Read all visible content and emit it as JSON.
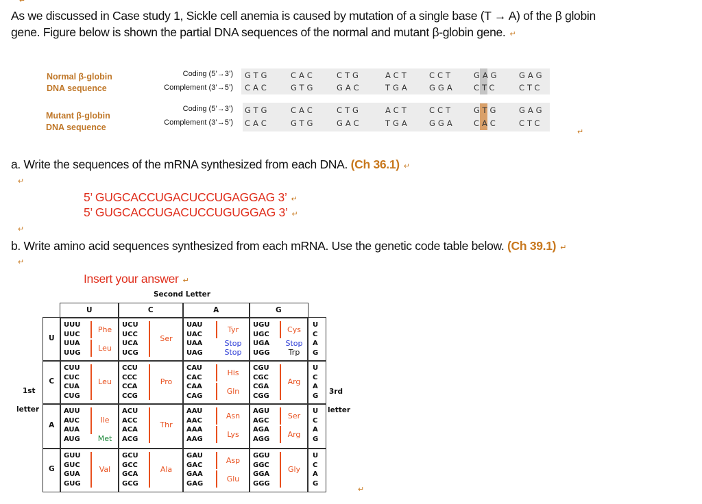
{
  "para_mark": "↵",
  "intro": {
    "line1": "As we discussed in Case study 1, Sickle cell anemia is caused by mutation of a single base (T → A) of the β globin",
    "line2": "gene. Figure below is shown the partial DNA sequences of the normal and mutant β-globin gene."
  },
  "dna_figure": {
    "normal_label": [
      "Normal  β-globin",
      "DNA sequence"
    ],
    "mutant_label": [
      "Mutant  β-globin",
      "DNA sequence"
    ],
    "coding_label": "Coding (5’→3’)",
    "complement_label": "Complement (3’→5’)",
    "normal_coding": [
      "GTG",
      "CAC",
      "CTG",
      "ACT",
      "CCT",
      "GAG",
      "GAG"
    ],
    "normal_complement": [
      "CAC",
      "GTG",
      "GAC",
      "TGA",
      "GGA",
      "CTC",
      "CTC"
    ],
    "mutant_coding": [
      "GTG",
      "CAC",
      "CTG",
      "ACT",
      "CCT",
      "GTG",
      "GAG"
    ],
    "mutant_complement": [
      "CAC",
      "GTG",
      "GAC",
      "TGA",
      "GGA",
      "CAC",
      "CTC"
    ],
    "highlight_codon_index": 5,
    "highlight_base_index": 1
  },
  "question_a": {
    "text": "a. Write the sequences of the mRNA synthesized from each DNA.",
    "ref": "(Ch 36.1)"
  },
  "answer_a": {
    "normal": "5’ GUGCACCUGACUCCUGAGGAG 3’",
    "mutant": "5’ GUGCACCUGACUCCUGUGGAG 3’"
  },
  "question_b": {
    "text": "b. Write amino acid sequences synthesized from each mRNA. Use the genetic code table below.",
    "ref": "(Ch 39.1)"
  },
  "answer_b": {
    "placeholder": "Insert your answer"
  },
  "codon_table": {
    "second_letter_label": "Second Letter",
    "first_letter_label": [
      "1st",
      "letter"
    ],
    "third_letter_label": [
      "3rd",
      "letter"
    ],
    "bases": [
      "U",
      "C",
      "A",
      "G"
    ],
    "colors": {
      "aa": "#e8501e",
      "stop": "#2b3bd6",
      "met": "#1e8a3c"
    },
    "rows": [
      [
        {
          "codons": [
            "UUU",
            "UUC",
            "UUA",
            "UUG"
          ],
          "aa": [
            {
              "name": "Phe",
              "from": 0,
              "to": 1,
              "bar": true
            },
            {
              "name": "Leu",
              "from": 2,
              "to": 3,
              "bar": true
            }
          ]
        },
        {
          "codons": [
            "UCU",
            "UCC",
            "UCA",
            "UCG"
          ],
          "aa": [
            {
              "name": "Ser",
              "from": 0,
              "to": 3,
              "bar": true
            }
          ]
        },
        {
          "codons": [
            "UAU",
            "UAC",
            "UAA",
            "UAG"
          ],
          "aa": [
            {
              "name": "Tyr",
              "from": 0,
              "to": 1,
              "bar": true
            },
            {
              "name": "Stop",
              "from": 2,
              "to": 2,
              "kind": "stop"
            },
            {
              "name": "Stop",
              "from": 3,
              "to": 3,
              "kind": "stop"
            }
          ]
        },
        {
          "codons": [
            "UGU",
            "UGC",
            "UGA",
            "UGG"
          ],
          "aa": [
            {
              "name": "Cys",
              "from": 0,
              "to": 1,
              "bar": true
            },
            {
              "name": "Stop",
              "from": 2,
              "to": 2,
              "kind": "stop"
            },
            {
              "name": "Trp",
              "from": 3,
              "to": 3,
              "kind": "plain"
            }
          ]
        }
      ],
      [
        {
          "codons": [
            "CUU",
            "CUC",
            "CUA",
            "CUG"
          ],
          "aa": [
            {
              "name": "Leu",
              "from": 0,
              "to": 3,
              "bar": true
            }
          ]
        },
        {
          "codons": [
            "CCU",
            "CCC",
            "CCA",
            "CCG"
          ],
          "aa": [
            {
              "name": "Pro",
              "from": 0,
              "to": 3,
              "bar": true
            }
          ]
        },
        {
          "codons": [
            "CAU",
            "CAC",
            "CAA",
            "CAG"
          ],
          "aa": [
            {
              "name": "His",
              "from": 0,
              "to": 1,
              "bar": true
            },
            {
              "name": "Gln",
              "from": 2,
              "to": 3,
              "bar": true
            }
          ]
        },
        {
          "codons": [
            "CGU",
            "CGC",
            "CGA",
            "CGG"
          ],
          "aa": [
            {
              "name": "Arg",
              "from": 0,
              "to": 3,
              "bar": true
            }
          ]
        }
      ],
      [
        {
          "codons": [
            "AUU",
            "AUC",
            "AUA",
            "AUG"
          ],
          "aa": [
            {
              "name": "Ile",
              "from": 0,
              "to": 2,
              "bar": true
            },
            {
              "name": "Met",
              "from": 3,
              "to": 3,
              "kind": "met"
            }
          ]
        },
        {
          "codons": [
            "ACU",
            "ACC",
            "ACA",
            "ACG"
          ],
          "aa": [
            {
              "name": "Thr",
              "from": 0,
              "to": 3,
              "bar": true
            }
          ]
        },
        {
          "codons": [
            "AAU",
            "AAC",
            "AAA",
            "AAG"
          ],
          "aa": [
            {
              "name": "Asn",
              "from": 0,
              "to": 1,
              "bar": true
            },
            {
              "name": "Lys",
              "from": 2,
              "to": 3,
              "bar": true
            }
          ]
        },
        {
          "codons": [
            "AGU",
            "AGC",
            "AGA",
            "AGG"
          ],
          "aa": [
            {
              "name": "Ser",
              "from": 0,
              "to": 1,
              "bar": true
            },
            {
              "name": "Arg",
              "from": 2,
              "to": 3,
              "bar": true
            }
          ]
        }
      ],
      [
        {
          "codons": [
            "GUU",
            "GUC",
            "GUA",
            "GUG"
          ],
          "aa": [
            {
              "name": "Val",
              "from": 0,
              "to": 3,
              "bar": true
            }
          ]
        },
        {
          "codons": [
            "GCU",
            "GCC",
            "GCA",
            "GCG"
          ],
          "aa": [
            {
              "name": "Ala",
              "from": 0,
              "to": 3,
              "bar": true
            }
          ]
        },
        {
          "codons": [
            "GAU",
            "GAC",
            "GAA",
            "GAG"
          ],
          "aa": [
            {
              "name": "Asp",
              "from": 0,
              "to": 1,
              "bar": true
            },
            {
              "name": "Glu",
              "from": 2,
              "to": 3,
              "bar": true
            }
          ]
        },
        {
          "codons": [
            "GGU",
            "GGC",
            "GGA",
            "GGG"
          ],
          "aa": [
            {
              "name": "Gly",
              "from": 0,
              "to": 3,
              "bar": true
            }
          ]
        }
      ]
    ]
  }
}
